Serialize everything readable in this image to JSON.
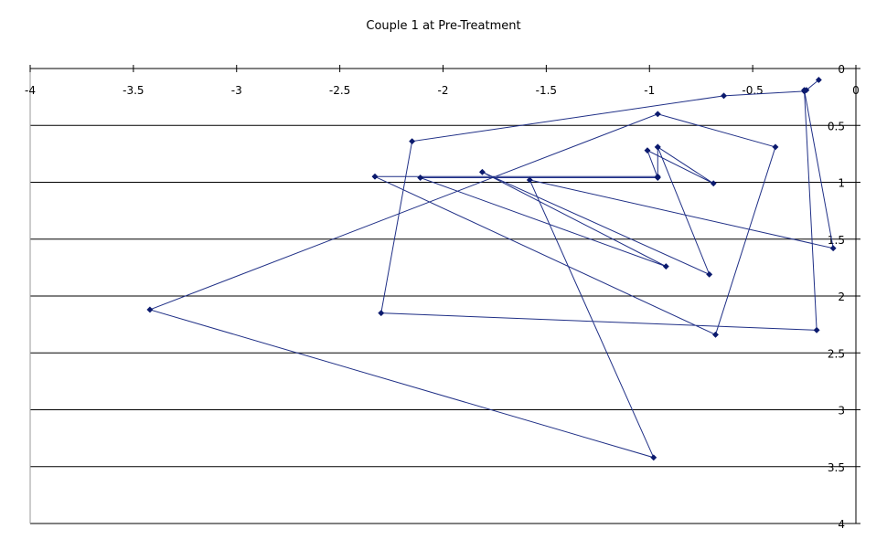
{
  "chart_data": {
    "type": "scatter",
    "title": "Couple 1 at Pre-Treatment",
    "xlabel": "",
    "ylabel": "",
    "xlim": [
      -4,
      0
    ],
    "ylim": [
      0,
      4
    ],
    "y_reversed": true,
    "x_axis_position": "top",
    "y_axis_position": "right",
    "grid": "horizontal major gridlines",
    "legend": "none",
    "series_color": "#1f2f86",
    "marker": "diamond",
    "connected": true,
    "x_ticks": [
      "-4",
      "-3.5",
      "-3",
      "-2.5",
      "-2",
      "-1.5",
      "-1",
      "-0.5",
      "0"
    ],
    "y_ticks": [
      "0",
      "0.5",
      "1",
      "1.5",
      "2",
      "2.5",
      "3",
      "3.5",
      "4"
    ],
    "points": [
      [
        -0.18,
        0.1
      ],
      [
        -0.24,
        0.19
      ],
      [
        -0.25,
        0.2
      ],
      [
        -0.64,
        0.24
      ],
      [
        -2.15,
        0.64
      ],
      [
        -2.3,
        2.15
      ],
      [
        -0.19,
        2.3
      ],
      [
        -0.25,
        0.19
      ],
      [
        -0.11,
        1.58
      ],
      [
        -1.58,
        0.98
      ],
      [
        -0.98,
        3.42
      ],
      [
        -3.42,
        2.12
      ],
      [
        -0.96,
        0.4
      ],
      [
        -0.39,
        0.69
      ],
      [
        -0.68,
        2.34
      ],
      [
        -2.33,
        0.95
      ],
      [
        -0.96,
        0.95
      ],
      [
        -0.96,
        0.69
      ],
      [
        -0.71,
        1.81
      ],
      [
        -1.81,
        0.91
      ],
      [
        -0.92,
        1.74
      ],
      [
        -2.11,
        0.96
      ],
      [
        -0.96,
        0.96
      ],
      [
        -1.01,
        0.72
      ],
      [
        -0.69,
        1.01
      ],
      [
        -0.96,
        0.69
      ]
    ]
  }
}
